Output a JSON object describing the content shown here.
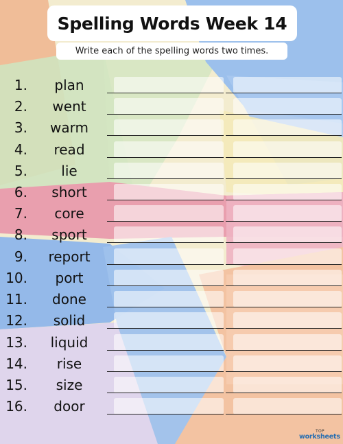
{
  "header": {
    "title": "Spelling Words Week 14",
    "instructions": "Write each of the spelling words two times."
  },
  "words": [
    {
      "number": "1.",
      "word": "plan"
    },
    {
      "number": "2.",
      "word": "went"
    },
    {
      "number": "3.",
      "word": "warm"
    },
    {
      "number": "4.",
      "word": "read"
    },
    {
      "number": "5.",
      "word": "lie"
    },
    {
      "number": "6.",
      "word": "short"
    },
    {
      "number": "7.",
      "word": "core"
    },
    {
      "number": "8.",
      "word": "sport"
    },
    {
      "number": "9.",
      "word": "report"
    },
    {
      "number": "10.",
      "word": "port"
    },
    {
      "number": "11.",
      "word": "done"
    },
    {
      "number": "12.",
      "word": "solid"
    },
    {
      "number": "13.",
      "word": "liquid"
    },
    {
      "number": "14.",
      "word": "rise"
    },
    {
      "number": "15.",
      "word": "size"
    },
    {
      "number": "16.",
      "word": "door"
    }
  ],
  "branding": {
    "logo_top": "TOP",
    "logo_bottom": "worksheets"
  },
  "colors": {
    "background": "#f2eacf",
    "pink": "#e89aa8",
    "blue": "#8fb5e8",
    "peach": "#f2b38e",
    "green": "#c7e0b8",
    "lavender": "#ddd3ea"
  }
}
